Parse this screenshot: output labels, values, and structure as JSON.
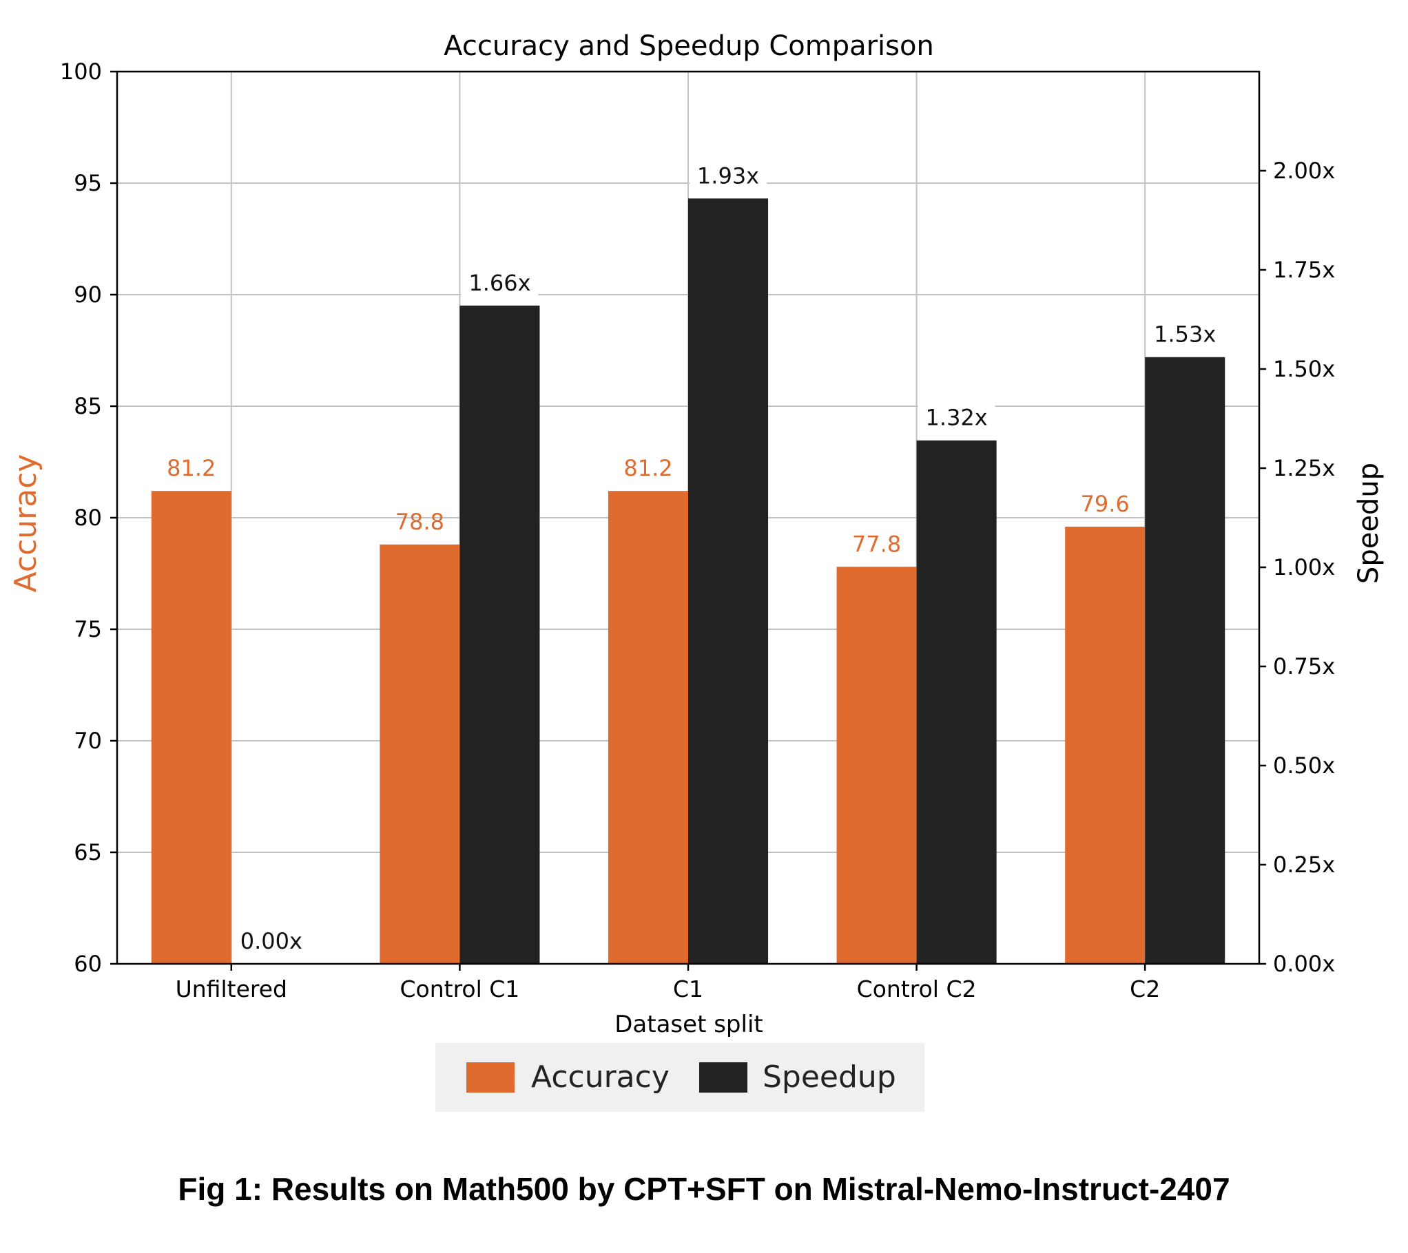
{
  "chart_data": {
    "type": "bar",
    "title": "Accuracy and Speedup Comparison",
    "xlabel": "Dataset split",
    "ylabel_left": "Accuracy",
    "ylabel_right": "Speedup",
    "categories": [
      "Unfiltered",
      "Control C1",
      "C1",
      "Control C2",
      "C2"
    ],
    "ylim_left": [
      60,
      100
    ],
    "ylim_right": [
      0,
      2.25
    ],
    "left_ticks": [
      60,
      65,
      70,
      75,
      80,
      85,
      90,
      95,
      100
    ],
    "right_ticks": [
      "0.00x",
      "0.25x",
      "0.50x",
      "0.75x",
      "1.00x",
      "1.25x",
      "1.50x",
      "1.75x",
      "2.00x"
    ],
    "grid": true,
    "legend_position": "bottom",
    "series": [
      {
        "name": "Accuracy",
        "axis": "left",
        "color": "#e06b2f",
        "values": [
          81.2,
          78.8,
          81.2,
          77.8,
          79.6
        ],
        "labels": [
          "81.2",
          "78.8",
          "81.2",
          "77.8",
          "79.6"
        ]
      },
      {
        "name": "Speedup",
        "axis": "right",
        "color": "#222222",
        "values": [
          0.0,
          1.66,
          1.93,
          1.32,
          1.53
        ],
        "labels": [
          "0.00x",
          "1.66x",
          "1.93x",
          "1.32x",
          "1.53x"
        ]
      }
    ]
  },
  "caption": "Fig 1: Results on Math500 by CPT+SFT on Mistral-Nemo-Instruct-2407"
}
